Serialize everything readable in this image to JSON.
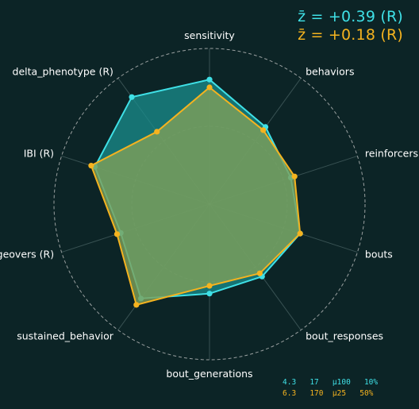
{
  "chart_data": {
    "type": "radar",
    "axes": [
      "sensitivity",
      "behaviors",
      "reinforcers",
      "bouts",
      "bout_responses",
      "bout_generations",
      "sustained_behavior",
      "changeovers (R)",
      "IBI (R)",
      "delta_phenotype (R)"
    ],
    "rlim": [
      -2,
      2
    ],
    "grid": "dashed circles",
    "series": [
      {
        "color": "#3fe0e6",
        "values": [
          1.2,
          0.45,
          0.2,
          0.45,
          0.3,
          0.3,
          1.0,
          0.4,
          1.1,
          1.4
        ]
      },
      {
        "color": "#f5b31f",
        "values": [
          1.0,
          0.35,
          0.3,
          0.45,
          0.2,
          0.1,
          1.2,
          0.5,
          1.2,
          0.3
        ]
      }
    ]
  },
  "scores": {
    "line1": "z̄ = +0.39 (R)",
    "line2": "z̄ = +0.18 (R)"
  },
  "params": {
    "line1": "4.3   17   µ100   10%",
    "line2": "6.3   170  µ25   50%"
  }
}
